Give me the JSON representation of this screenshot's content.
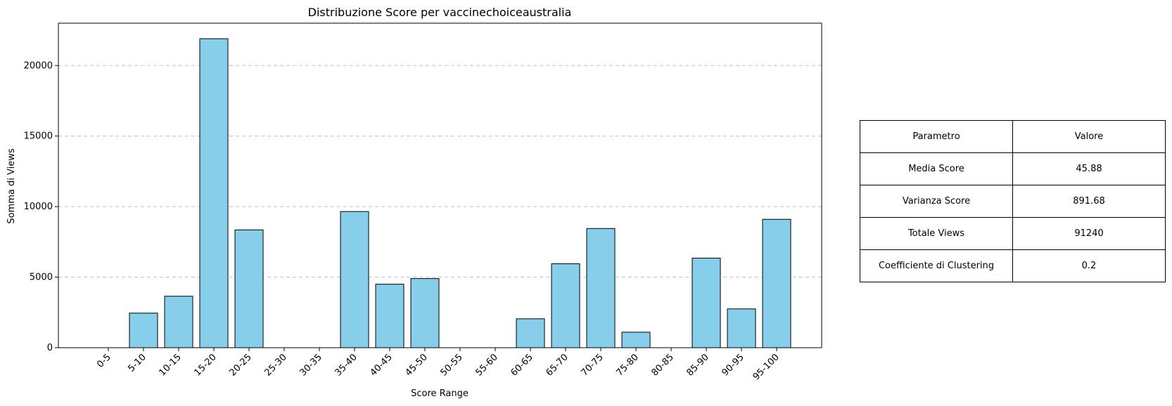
{
  "chart_data": {
    "type": "bar",
    "title": "Distribuzione Score per vaccinechoiceaustralia",
    "xlabel": "Score Range",
    "ylabel": "Somma di Views",
    "categories": [
      "0-5",
      "5-10",
      "10-15",
      "15-20",
      "20-25",
      "25-30",
      "30-35",
      "35-40",
      "40-45",
      "45-50",
      "50-55",
      "55-60",
      "60-65",
      "65-70",
      "70-75",
      "75-80",
      "80-85",
      "85-90",
      "90-95",
      "95-100"
    ],
    "values": [
      0,
      2450,
      3650,
      21900,
      8350,
      0,
      0,
      9650,
      4500,
      4900,
      0,
      0,
      2050,
      5950,
      8450,
      1100,
      0,
      6350,
      2750,
      9100
    ],
    "ylim": [
      0,
      23000
    ],
    "yticks": [
      0,
      5000,
      10000,
      15000,
      20000
    ],
    "grid": "y",
    "bar_color": "#87CEEB",
    "edge_color": "#000000",
    "grid_color": "#c0c0c0"
  },
  "stats_table": {
    "header": {
      "param": "Parametro",
      "value": "Valore"
    },
    "rows": [
      {
        "param": "Media Score",
        "value": "45.88"
      },
      {
        "param": "Varianza Score",
        "value": "891.68"
      },
      {
        "param": "Totale Views",
        "value": "91240"
      },
      {
        "param": "Coefficiente di Clustering",
        "value": "0.2"
      }
    ]
  }
}
